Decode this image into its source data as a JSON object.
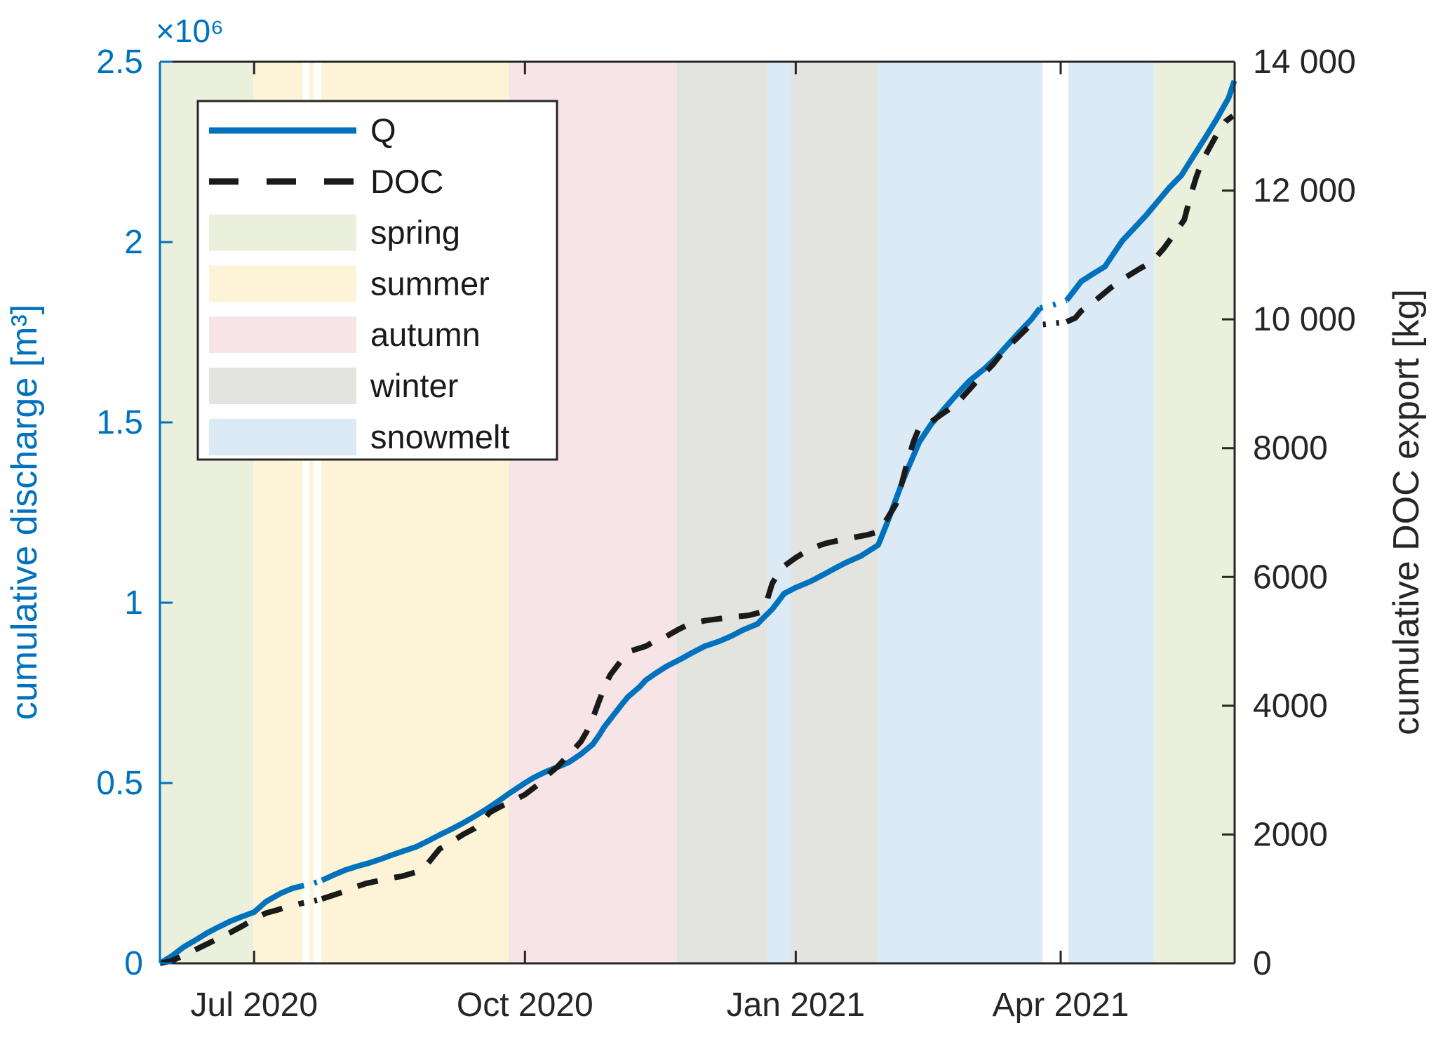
{
  "chart_data": {
    "type": "line",
    "title": "",
    "x_axis": {
      "start_date_label": "2020-05-30",
      "span_days": 365.1,
      "ticks": [
        {
          "day": 32,
          "label": "Jul 2020"
        },
        {
          "day": 124,
          "label": "Oct 2020"
        },
        {
          "day": 216,
          "label": "Jan 2021"
        },
        {
          "day": 306,
          "label": "Apr 2021"
        }
      ]
    },
    "left_axis": {
      "label": "cumulative discharge [m³]",
      "multiplier": "×10⁶",
      "color": "#0072BD",
      "range": [
        0,
        2500000
      ],
      "tick_values": [
        0,
        500000,
        1000000,
        1500000,
        2000000,
        2500000
      ],
      "tick_labels": [
        "0",
        "0.5",
        "1",
        "1.5",
        "2",
        "2.5"
      ]
    },
    "right_axis": {
      "label": "cumulative DOC export [kg]",
      "color": "#262626",
      "range": [
        0,
        14000
      ],
      "tick_values": [
        0,
        2000,
        4000,
        6000,
        8000,
        10000,
        12000,
        14000
      ],
      "tick_labels": [
        "0",
        "2000",
        "4000",
        "6000",
        "8000",
        "10 000",
        "12 000",
        "14 000"
      ]
    },
    "seasons": {
      "colors": {
        "spring": "#eaf0db",
        "summer": "#fdf4d8",
        "autumn": "#f6e4e6",
        "winter": "#e3e3e0",
        "snowmelt": "#dceaf5"
      },
      "bands": [
        {
          "season": "spring",
          "start": 0,
          "end": 31.7
        },
        {
          "season": "summer",
          "start": 31.7,
          "end": 48.4
        },
        {
          "season": "summer",
          "start": 50.8,
          "end": 52.2
        },
        {
          "season": "summer",
          "start": 54.8,
          "end": 118.5
        },
        {
          "season": "autumn",
          "start": 118.5,
          "end": 175.6
        },
        {
          "season": "winter",
          "start": 175.6,
          "end": 206.4
        },
        {
          "season": "snowmelt",
          "start": 206.4,
          "end": 214.5
        },
        {
          "season": "winter",
          "start": 214.5,
          "end": 244.0
        },
        {
          "season": "snowmelt",
          "start": 244.0,
          "end": 299.8
        },
        {
          "season": "snowmelt",
          "start": 308.6,
          "end": 337.7
        },
        {
          "season": "spring",
          "start": 337.7,
          "end": 365.1
        }
      ]
    },
    "data_gaps": [
      [
        48.4,
        54.8
      ],
      [
        299.8,
        308.6
      ]
    ],
    "series": [
      {
        "name": "Q",
        "axis": "left",
        "color": "#0072BD",
        "style": "solid",
        "points": [
          [
            0,
            0
          ],
          [
            4,
            20000
          ],
          [
            8,
            45000
          ],
          [
            12,
            64000
          ],
          [
            16,
            84000
          ],
          [
            20,
            101000
          ],
          [
            24,
            117000
          ],
          [
            28,
            130000
          ],
          [
            32,
            142000
          ],
          [
            36,
            171000
          ],
          [
            41,
            194000
          ],
          [
            45,
            208000
          ],
          [
            48,
            214000
          ],
          [
            52,
            222000
          ],
          [
            55,
            230000
          ],
          [
            59,
            245000
          ],
          [
            63,
            259000
          ],
          [
            67,
            269000
          ],
          [
            71,
            278000
          ],
          [
            75,
            289000
          ],
          [
            79,
            301000
          ],
          [
            83,
            312000
          ],
          [
            87,
            323000
          ],
          [
            91,
            339000
          ],
          [
            95,
            356000
          ],
          [
            99,
            372000
          ],
          [
            103,
            389000
          ],
          [
            107,
            408000
          ],
          [
            111,
            428000
          ],
          [
            115,
            450000
          ],
          [
            119,
            473000
          ],
          [
            124,
            500000
          ],
          [
            127,
            515000
          ],
          [
            131,
            531000
          ],
          [
            135,
            544000
          ],
          [
            139,
            558000
          ],
          [
            143,
            580000
          ],
          [
            147,
            607000
          ],
          [
            149,
            630000
          ],
          [
            151,
            656000
          ],
          [
            153,
            677000
          ],
          [
            155,
            698000
          ],
          [
            157,
            719000
          ],
          [
            159,
            739000
          ],
          [
            161,
            753000
          ],
          [
            163,
            767000
          ],
          [
            165,
            785000
          ],
          [
            168,
            802000
          ],
          [
            172,
            823000
          ],
          [
            177,
            844000
          ],
          [
            181,
            862000
          ],
          [
            185,
            879000
          ],
          [
            190,
            893000
          ],
          [
            194,
            907000
          ],
          [
            198,
            924000
          ],
          [
            203,
            941000
          ],
          [
            205,
            958000
          ],
          [
            208,
            982000
          ],
          [
            210,
            1003000
          ],
          [
            212,
            1025000
          ],
          [
            216,
            1042000
          ],
          [
            221,
            1059000
          ],
          [
            225,
            1076000
          ],
          [
            229,
            1094000
          ],
          [
            233,
            1111000
          ],
          [
            238,
            1129000
          ],
          [
            244,
            1160000
          ],
          [
            247,
            1220000
          ],
          [
            250,
            1286000
          ],
          [
            252,
            1330000
          ],
          [
            254,
            1370000
          ],
          [
            256,
            1408000
          ],
          [
            258,
            1446000
          ],
          [
            262,
            1495000
          ],
          [
            267,
            1543000
          ],
          [
            271,
            1580000
          ],
          [
            275,
            1615000
          ],
          [
            280,
            1648000
          ],
          [
            284,
            1679000
          ],
          [
            288,
            1715000
          ],
          [
            292,
            1751000
          ],
          [
            296,
            1785000
          ],
          [
            299,
            1817000
          ],
          [
            304,
            1827000
          ],
          [
            308,
            1838000
          ],
          [
            313,
            1891000
          ],
          [
            317,
            1912000
          ],
          [
            321,
            1932000
          ],
          [
            324,
            1968000
          ],
          [
            327,
            2004000
          ],
          [
            331,
            2039000
          ],
          [
            335,
            2074000
          ],
          [
            339,
            2113000
          ],
          [
            343,
            2152000
          ],
          [
            347,
            2185000
          ],
          [
            351,
            2237000
          ],
          [
            355,
            2288000
          ],
          [
            359,
            2341000
          ],
          [
            363,
            2399000
          ],
          [
            365,
            2447000
          ]
        ]
      },
      {
        "name": "DOC",
        "axis": "right",
        "color": "#1a1a1a",
        "style": "dashed",
        "points": [
          [
            0,
            0
          ],
          [
            4,
            40
          ],
          [
            8,
            120
          ],
          [
            12,
            210
          ],
          [
            16,
            300
          ],
          [
            20,
            390
          ],
          [
            24,
            480
          ],
          [
            28,
            580
          ],
          [
            32,
            686
          ],
          [
            36,
            780
          ],
          [
            40,
            830
          ],
          [
            44,
            890
          ],
          [
            48,
            930
          ],
          [
            52,
            965
          ],
          [
            55,
            1000
          ],
          [
            59,
            1060
          ],
          [
            63,
            1120
          ],
          [
            66,
            1180
          ],
          [
            70,
            1240
          ],
          [
            74,
            1280
          ],
          [
            78,
            1320
          ],
          [
            82,
            1350
          ],
          [
            87,
            1416
          ],
          [
            91,
            1550
          ],
          [
            95,
            1776
          ],
          [
            99,
            1885
          ],
          [
            103,
            2000
          ],
          [
            107,
            2100
          ],
          [
            110,
            2230
          ],
          [
            112,
            2342
          ],
          [
            116,
            2440
          ],
          [
            119,
            2500
          ],
          [
            121,
            2549
          ],
          [
            124,
            2620
          ],
          [
            128,
            2760
          ],
          [
            131,
            2898
          ],
          [
            135,
            3050
          ],
          [
            138,
            3200
          ],
          [
            141,
            3340
          ],
          [
            143,
            3442
          ],
          [
            145,
            3600
          ],
          [
            147,
            3800
          ],
          [
            149,
            4050
          ],
          [
            151,
            4292
          ],
          [
            153,
            4480
          ],
          [
            155,
            4600
          ],
          [
            158,
            4780
          ],
          [
            160,
            4850
          ],
          [
            165,
            4923
          ],
          [
            168,
            5000
          ],
          [
            172,
            5076
          ],
          [
            176,
            5180
          ],
          [
            180,
            5272
          ],
          [
            185,
            5320
          ],
          [
            190,
            5350
          ],
          [
            195,
            5380
          ],
          [
            200,
            5403
          ],
          [
            204,
            5450
          ],
          [
            206,
            5600
          ],
          [
            208,
            5900
          ],
          [
            210,
            6050
          ],
          [
            212,
            6166
          ],
          [
            216,
            6300
          ],
          [
            221,
            6438
          ],
          [
            226,
            6520
          ],
          [
            233,
            6591
          ],
          [
            240,
            6650
          ],
          [
            244,
            6700
          ],
          [
            247,
            6900
          ],
          [
            250,
            7125
          ],
          [
            252,
            7450
          ],
          [
            254,
            7800
          ],
          [
            256,
            8100
          ],
          [
            258,
            8323
          ],
          [
            262,
            8410
          ],
          [
            266,
            8540
          ],
          [
            270,
            8660
          ],
          [
            274,
            8860
          ],
          [
            278,
            9064
          ],
          [
            283,
            9300
          ],
          [
            287,
            9532
          ],
          [
            291,
            9700
          ],
          [
            295,
            9881
          ],
          [
            300,
            9920
          ],
          [
            304,
            9940
          ],
          [
            308,
            9960
          ],
          [
            311,
            10022
          ],
          [
            313,
            10131
          ],
          [
            318,
            10300
          ],
          [
            323,
            10490
          ],
          [
            328,
            10650
          ],
          [
            333,
            10790
          ],
          [
            337,
            10893
          ],
          [
            341,
            11100
          ],
          [
            345,
            11350
          ],
          [
            348,
            11547
          ],
          [
            350,
            11900
          ],
          [
            352,
            12200
          ],
          [
            354,
            12451
          ],
          [
            357,
            12700
          ],
          [
            360,
            12950
          ],
          [
            362,
            13072
          ],
          [
            364.5,
            13159
          ]
        ]
      }
    ],
    "legend": {
      "entries": [
        {
          "label": "Q",
          "type": "line",
          "color": "#0072BD"
        },
        {
          "label": "DOC",
          "type": "dash",
          "color": "#1a1a1a"
        },
        {
          "label": "spring",
          "type": "patch",
          "season": "spring"
        },
        {
          "label": "summer",
          "type": "patch",
          "season": "summer"
        },
        {
          "label": "autumn",
          "type": "patch",
          "season": "autumn"
        },
        {
          "label": "winter",
          "type": "patch",
          "season": "winter"
        },
        {
          "label": "snowmelt",
          "type": "patch",
          "season": "snowmelt"
        }
      ]
    }
  }
}
